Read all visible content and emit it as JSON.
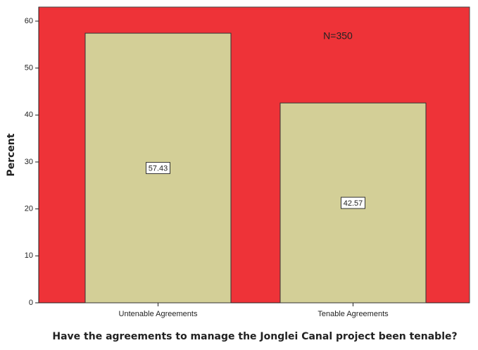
{
  "chart_data": {
    "type": "bar",
    "categories": [
      "Untenable Agreements",
      "Tenable Agreements"
    ],
    "values": [
      57.43,
      42.57
    ],
    "color": "#d3cf97",
    "background": "#ee3338",
    "ylim": [
      0,
      63
    ],
    "yticks": [
      0,
      10,
      20,
      30,
      40,
      50,
      60
    ],
    "ylabel": "Percent",
    "xlabel": "Have the agreements to manage the Jonglei Canal project been tenable?",
    "annotation": "N=350",
    "grid": false
  }
}
